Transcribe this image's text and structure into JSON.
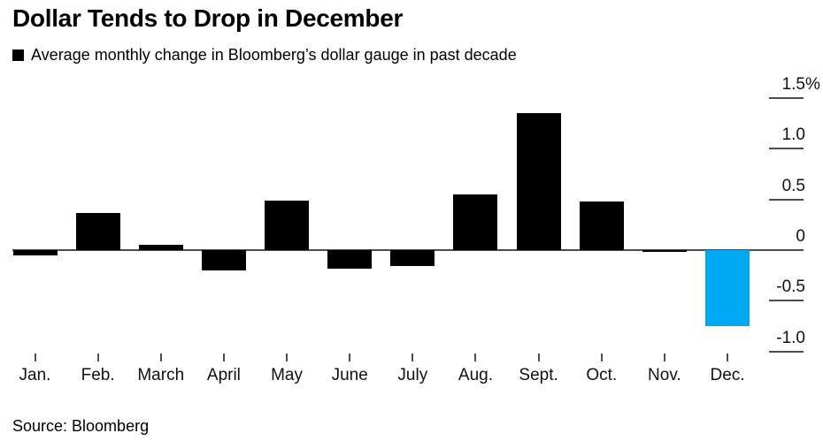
{
  "title": "Dollar Tends to Drop in December",
  "legend": {
    "label": "Average monthly change in Bloomberg’s dollar gauge in past decade",
    "swatch_color": "#000000"
  },
  "source": "Source: Bloomberg",
  "chart_data": {
    "type": "bar",
    "title": "Dollar Tends to Drop in December",
    "series_label": "Average monthly change in Bloomberg’s dollar gauge in past decade",
    "categories": [
      "Jan.",
      "Feb.",
      "March",
      "April",
      "May",
      "June",
      "July",
      "Aug.",
      "Sept.",
      "Oct.",
      "Nov.",
      "Dec."
    ],
    "values": [
      -0.05,
      0.37,
      0.05,
      -0.2,
      0.49,
      -0.18,
      -0.16,
      0.55,
      1.35,
      0.48,
      -0.02,
      -0.75
    ],
    "unit": "%",
    "xlabel": "",
    "ylabel": "",
    "ylim": [
      -1.25,
      1.6
    ],
    "y_ticks": [
      {
        "label": "1.5",
        "suffix": "%",
        "value": 1.5
      },
      {
        "label": "1.0",
        "value": 1.0
      },
      {
        "label": "0.5",
        "value": 0.5
      },
      {
        "label": "0",
        "value": 0
      },
      {
        "label": "-0.5",
        "value": -0.5
      },
      {
        "label": "-1.0",
        "value": -1.0
      }
    ],
    "bar_color": "#000000",
    "highlight_index": 11,
    "highlight_color": "#00a9f4",
    "axis_color": "#4d4d4d",
    "grid": "off",
    "tick_style": "right-edge short segments, labels above ticks",
    "legend_position": "top-left"
  }
}
